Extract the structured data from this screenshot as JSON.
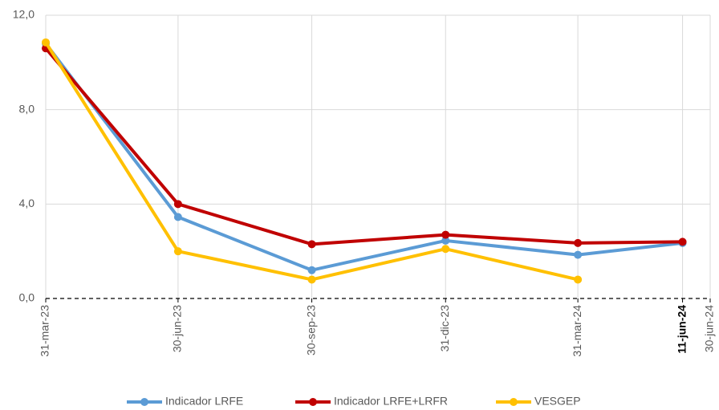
{
  "chart_data": {
    "type": "line",
    "x": [
      "31-mar-23",
      "30-jun-23",
      "30-sep-23",
      "31-dic-23",
      "31-mar-24",
      "11-jun-24"
    ],
    "xlim": [
      "31-mar-23",
      "30-jun-24"
    ],
    "xticks": [
      "31-mar-23",
      "30-jun-23",
      "30-sep-23",
      "31-dic-23",
      "31-mar-24",
      "11-jun-24",
      "30-jun-24"
    ],
    "xtick_bold": [
      false,
      false,
      false,
      false,
      false,
      true,
      false
    ],
    "ylim": [
      0,
      12
    ],
    "yticks": [
      {
        "value": 0,
        "label": "0,0"
      },
      {
        "value": 4,
        "label": "4,0"
      },
      {
        "value": 8,
        "label": "8,0"
      },
      {
        "value": 12,
        "label": "12,0"
      }
    ],
    "grid": true,
    "legend": "bottom",
    "series": [
      {
        "name": "Indicador LRFE",
        "color": "#5b9bd5",
        "values": [
          10.8,
          3.45,
          1.2,
          2.45,
          1.85,
          2.35
        ]
      },
      {
        "name": "Indicador LRFE+LRFR",
        "color": "#c00000",
        "values": [
          10.6,
          4.0,
          2.3,
          2.7,
          2.35,
          2.4
        ]
      },
      {
        "name": "VESGEP",
        "color": "#ffc000",
        "values": [
          10.85,
          2.0,
          0.8,
          2.1,
          0.8,
          null
        ]
      }
    ]
  }
}
